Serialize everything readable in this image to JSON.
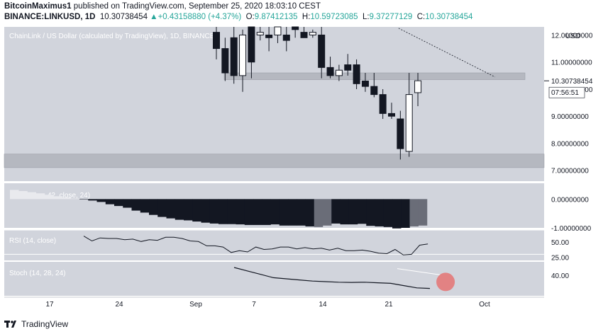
{
  "header": {
    "author": "BitcoinMaximus1",
    "published_text": " published on TradingView.com, September 25, 2020 18:03:10 CEST",
    "symbol": "BINANCE:LINKUSD, 1D",
    "price": "10.30738454",
    "change_arrow": "▲",
    "change": "+0.43158880 (+4.37%)",
    "o_label": "O:",
    "o_value": "9.87412135",
    "h_label": "H:",
    "h_value": "10.59723085",
    "l_label": "L:",
    "l_value": "9.37277129",
    "c_label": "C:",
    "c_value": "10.30738454"
  },
  "footer": {
    "brand": "TradingView"
  },
  "colors": {
    "pane_bg": "#d1d4dc",
    "candle_up_fill": "#ffffff",
    "candle_down_fill": "#131722",
    "zone": "#b2b5be",
    "rsi_band": "#ffffff",
    "stoch_highlight": "#e57373"
  },
  "chart_data": [
    {
      "type": "candlestick",
      "title": "ChainLink / US Dollar (calculated by TradingView), 1D, BINANCE",
      "currency_label": "USD",
      "y_ticks": [
        "12.00000000",
        "11.00000000",
        "10.00000000",
        "9.00000000",
        "8.00000000",
        "7.00000000"
      ],
      "ylim": [
        6.6,
        12.3
      ],
      "last_price_label": "10.30738454",
      "countdown_label": "07:56:51",
      "x_ticks": [
        "17",
        "24",
        "Sep",
        "7",
        "14",
        "21",
        "Oct"
      ],
      "candles": [
        {
          "o": 12.1,
          "h": 12.4,
          "l": 11.1,
          "c": 11.5
        },
        {
          "o": 11.5,
          "h": 11.9,
          "l": 10.3,
          "c": 10.6
        },
        {
          "o": 11.9,
          "h": 12.3,
          "l": 10.2,
          "c": 10.5
        },
        {
          "o": 10.5,
          "h": 12.2,
          "l": 9.9,
          "c": 12.0
        },
        {
          "o": 12.3,
          "h": 12.4,
          "l": 10.4,
          "c": 11.0
        },
        {
          "o": 12.0,
          "h": 12.3,
          "l": 11.8,
          "c": 12.1
        },
        {
          "o": 12.0,
          "h": 12.4,
          "l": 11.4,
          "c": 11.9
        },
        {
          "o": 12.0,
          "h": 12.3,
          "l": 11.7,
          "c": 12.3
        },
        {
          "o": 12.0,
          "h": 12.3,
          "l": 11.4,
          "c": 11.8
        },
        {
          "o": 12.4,
          "h": 12.4,
          "l": 11.9,
          "c": 12.2
        },
        {
          "o": 12.1,
          "h": 12.3,
          "l": 11.9,
          "c": 11.9
        },
        {
          "o": 12.0,
          "h": 12.2,
          "l": 11.9,
          "c": 12.1
        },
        {
          "o": 12.0,
          "h": 12.3,
          "l": 10.4,
          "c": 10.8
        },
        {
          "o": 10.8,
          "h": 11.2,
          "l": 10.4,
          "c": 10.5
        },
        {
          "o": 10.5,
          "h": 10.9,
          "l": 10.3,
          "c": 10.7
        },
        {
          "o": 10.9,
          "h": 11.3,
          "l": 10.5,
          "c": 10.7
        },
        {
          "o": 10.9,
          "h": 11.1,
          "l": 10.0,
          "c": 10.2
        },
        {
          "o": 10.3,
          "h": 10.6,
          "l": 9.9,
          "c": 10.1
        },
        {
          "o": 10.1,
          "h": 10.6,
          "l": 9.7,
          "c": 9.8
        },
        {
          "o": 9.8,
          "h": 10.0,
          "l": 8.9,
          "c": 9.1
        },
        {
          "o": 9.1,
          "h": 9.5,
          "l": 8.9,
          "c": 9.0
        },
        {
          "o": 8.9,
          "h": 9.2,
          "l": 7.4,
          "c": 7.8
        },
        {
          "o": 7.7,
          "h": 10.6,
          "l": 7.5,
          "c": 9.8
        },
        {
          "o": 9.87,
          "h": 10.6,
          "l": 9.37,
          "c": 10.31
        }
      ],
      "zones": [
        {
          "from": 10.35,
          "to": 10.6
        },
        {
          "from": 7.1,
          "to": 7.6
        }
      ],
      "trendline": [
        {
          "i": 20.8,
          "v": 12.25
        },
        {
          "i": 31.8,
          "v": 10.45
        }
      ]
    },
    {
      "type": "histogram",
      "legend": "42, close, 24)",
      "y_ticks": [
        "0.00000000",
        "-1.00000000"
      ],
      "ylim": [
        -1.0,
        0.55
      ],
      "values": [
        0.32,
        0.28,
        0.24,
        0.2,
        0.15,
        0.1,
        0.06,
        0.02,
        -0.01,
        -0.05,
        -0.1,
        -0.18,
        -0.24,
        -0.3,
        -0.4,
        -0.47,
        -0.55,
        -0.62,
        -0.67,
        -0.72,
        -0.74,
        -0.78,
        -0.82,
        -0.85,
        -0.87,
        -0.87,
        -0.88,
        -0.9,
        -0.9,
        -0.9,
        -0.88,
        -0.92,
        -0.92,
        -0.92,
        -0.95,
        -0.97,
        -0.92,
        -0.85,
        -0.88,
        -0.88,
        -0.86,
        -0.93,
        -0.95,
        -0.97,
        -1.02,
        -1.0,
        -0.95,
        -0.92
      ]
    },
    {
      "type": "line",
      "legend": "RSI (14, close)",
      "y_ticks": [
        "50.00",
        "25.00"
      ],
      "ylim": [
        20,
        70
      ],
      "band": [
        30,
        70
      ],
      "values": [
        60,
        52,
        57,
        56,
        56,
        54,
        55,
        51,
        54,
        53,
        58,
        58,
        56,
        52,
        51,
        44,
        44,
        42,
        33,
        36,
        34,
        42,
        38,
        39,
        42,
        42,
        39,
        41,
        39,
        40,
        37,
        40,
        36,
        36,
        37,
        35,
        32,
        31,
        38,
        29,
        30,
        45,
        47
      ]
    },
    {
      "type": "line",
      "legend": "Stoch (14, 28, 24)",
      "y_ticks": [
        "40.00"
      ],
      "ylim": [
        22,
        52
      ],
      "values": [
        47,
        44,
        41,
        38,
        37,
        36,
        35,
        34.5,
        34,
        33.8,
        34,
        33.5,
        33,
        31,
        29,
        28.5
      ],
      "reference_line": [
        {
          "i": 12.5,
          "v": 46
        },
        {
          "i": 15.8,
          "v": 40.5
        }
      ],
      "highlight": {
        "i": 16.2,
        "v": 33
      }
    }
  ]
}
